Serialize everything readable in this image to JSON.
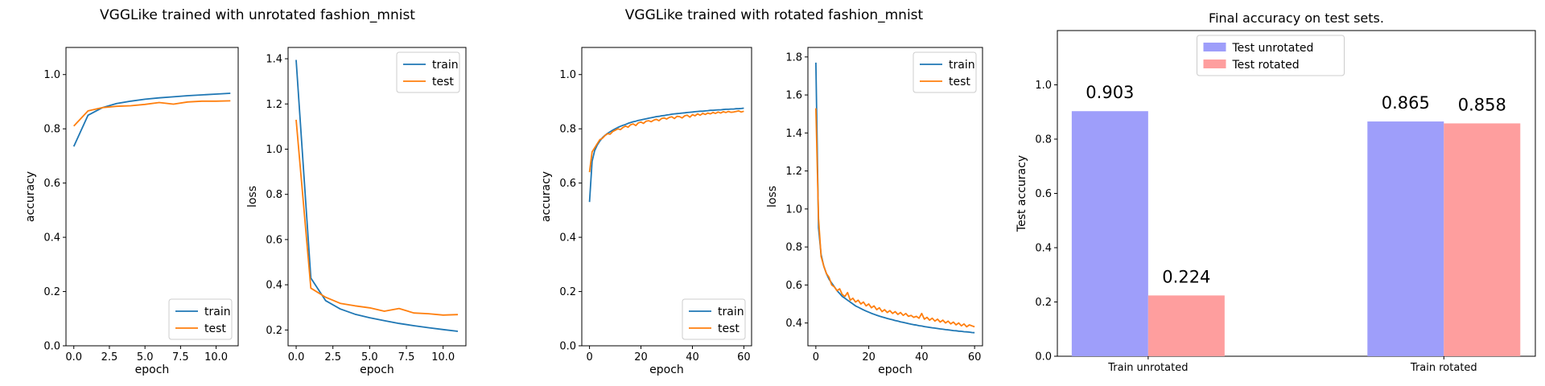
{
  "suptitles": [
    "VGGLike trained with unrotated fashion_mnist",
    "VGGLike trained with rotated fashion_mnist"
  ],
  "chart_data": [
    {
      "id": "unrot_acc",
      "type": "line",
      "title": "",
      "xlabel": "epoch",
      "ylabel": "accuracy",
      "xlim": [
        -0.55,
        11.55
      ],
      "ylim": [
        0,
        1.1
      ],
      "xticks": [
        0,
        2.5,
        5,
        7.5,
        10
      ],
      "xticklabels": [
        "0.0",
        "2.5",
        "5.0",
        "7.5",
        "10.0"
      ],
      "yticks": [
        0,
        0.2,
        0.4,
        0.6,
        0.8,
        1.0
      ],
      "yticklabels": [
        "0.0",
        "0.2",
        "0.4",
        "0.6",
        "0.8",
        "1.0"
      ],
      "legend": "lower-right",
      "grid": false,
      "x": [
        0,
        1,
        2,
        3,
        4,
        5,
        6,
        7,
        8,
        9,
        10,
        11
      ],
      "series": [
        {
          "name": "train",
          "color": "#1f77b4",
          "values": [
            0.735,
            0.85,
            0.878,
            0.893,
            0.902,
            0.909,
            0.914,
            0.918,
            0.922,
            0.925,
            0.928,
            0.931
          ]
        },
        {
          "name": "test",
          "color": "#ff7f0e",
          "values": [
            0.81,
            0.866,
            0.878,
            0.883,
            0.885,
            0.89,
            0.897,
            0.891,
            0.899,
            0.902,
            0.902,
            0.903
          ]
        }
      ]
    },
    {
      "id": "unrot_loss",
      "type": "line",
      "title": "",
      "xlabel": "epoch",
      "ylabel": "loss",
      "xlim": [
        -0.55,
        11.55
      ],
      "ylim": [
        0.13,
        1.45
      ],
      "xticks": [
        0,
        2.5,
        5,
        7.5,
        10
      ],
      "xticklabels": [
        "0.0",
        "2.5",
        "5.0",
        "7.5",
        "10.0"
      ],
      "yticks": [
        0.2,
        0.4,
        0.6,
        0.8,
        1.0,
        1.2,
        1.4
      ],
      "yticklabels": [
        "0.2",
        "0.4",
        "0.6",
        "0.8",
        "1.0",
        "1.2",
        "1.4"
      ],
      "legend": "upper-right",
      "grid": false,
      "x": [
        0,
        1,
        2,
        3,
        4,
        5,
        6,
        7,
        8,
        9,
        10,
        11
      ],
      "series": [
        {
          "name": "train",
          "color": "#1f77b4",
          "values": [
            1.395,
            0.43,
            0.33,
            0.293,
            0.27,
            0.254,
            0.241,
            0.229,
            0.219,
            0.21,
            0.202,
            0.194
          ]
        },
        {
          "name": "test",
          "color": "#ff7f0e",
          "values": [
            1.13,
            0.385,
            0.345,
            0.318,
            0.307,
            0.298,
            0.283,
            0.295,
            0.275,
            0.272,
            0.266,
            0.268
          ]
        }
      ]
    },
    {
      "id": "rot_acc",
      "type": "line",
      "title": "",
      "xlabel": "epoch",
      "ylabel": "accuracy",
      "xlim": [
        -3,
        63
      ],
      "ylim": [
        0,
        1.1
      ],
      "xticks": [
        0,
        20,
        40,
        60
      ],
      "xticklabels": [
        "0",
        "20",
        "40",
        "60"
      ],
      "yticks": [
        0,
        0.2,
        0.4,
        0.6,
        0.8,
        1.0
      ],
      "yticklabels": [
        "0.0",
        "0.2",
        "0.4",
        "0.6",
        "0.8",
        "1.0"
      ],
      "legend": "lower-right",
      "grid": false,
      "x_range": [
        0,
        60
      ],
      "series": [
        {
          "name": "train",
          "color": "#1f77b4",
          "values": [
            0.53,
            0.68,
            0.72,
            0.74,
            0.755,
            0.767,
            0.776,
            0.783,
            0.789,
            0.795,
            0.8,
            0.805,
            0.809,
            0.813,
            0.816,
            0.82,
            0.823,
            0.826,
            0.828,
            0.831,
            0.833,
            0.835,
            0.837,
            0.839,
            0.841,
            0.843,
            0.845,
            0.846,
            0.848,
            0.849,
            0.851,
            0.852,
            0.854,
            0.855,
            0.856,
            0.857,
            0.858,
            0.859,
            0.86,
            0.861,
            0.862,
            0.863,
            0.864,
            0.865,
            0.865,
            0.866,
            0.867,
            0.868,
            0.868,
            0.869,
            0.87,
            0.87,
            0.871,
            0.872,
            0.872,
            0.873,
            0.873,
            0.874,
            0.874,
            0.875,
            0.876
          ]
        },
        {
          "name": "test",
          "color": "#ff7f0e",
          "values": [
            0.64,
            0.715,
            0.73,
            0.745,
            0.76,
            0.765,
            0.775,
            0.782,
            0.78,
            0.79,
            0.795,
            0.8,
            0.797,
            0.805,
            0.81,
            0.806,
            0.815,
            0.818,
            0.812,
            0.822,
            0.825,
            0.82,
            0.828,
            0.83,
            0.826,
            0.832,
            0.835,
            0.83,
            0.838,
            0.84,
            0.836,
            0.842,
            0.844,
            0.838,
            0.846,
            0.845,
            0.84,
            0.848,
            0.85,
            0.843,
            0.852,
            0.848,
            0.855,
            0.85,
            0.857,
            0.853,
            0.858,
            0.855,
            0.86,
            0.857,
            0.862,
            0.858,
            0.863,
            0.86,
            0.864,
            0.861,
            0.862,
            0.864,
            0.866,
            0.862,
            0.865
          ]
        }
      ]
    },
    {
      "id": "rot_loss",
      "type": "line",
      "title": "",
      "xlabel": "epoch",
      "ylabel": "loss",
      "xlim": [
        -3,
        63
      ],
      "ylim": [
        0.28,
        1.85
      ],
      "xticks": [
        0,
        20,
        40,
        60
      ],
      "xticklabels": [
        "0",
        "20",
        "40",
        "60"
      ],
      "yticks": [
        0.4,
        0.6,
        0.8,
        1.0,
        1.2,
        1.4,
        1.6,
        1.8
      ],
      "yticklabels": [
        "0.4",
        "0.6",
        "0.8",
        "1.0",
        "1.2",
        "1.4",
        "1.6",
        "1.8"
      ],
      "legend": "upper-right",
      "grid": false,
      "x_range": [
        0,
        60
      ],
      "series": [
        {
          "name": "train",
          "color": "#1f77b4",
          "values": [
            1.77,
            0.9,
            0.76,
            0.7,
            0.66,
            0.63,
            0.61,
            0.59,
            0.57,
            0.555,
            0.54,
            0.53,
            0.52,
            0.51,
            0.5,
            0.49,
            0.483,
            0.476,
            0.469,
            0.463,
            0.457,
            0.451,
            0.446,
            0.441,
            0.436,
            0.432,
            0.428,
            0.424,
            0.42,
            0.417,
            0.413,
            0.41,
            0.406,
            0.403,
            0.4,
            0.397,
            0.394,
            0.391,
            0.389,
            0.386,
            0.384,
            0.381,
            0.379,
            0.377,
            0.375,
            0.373,
            0.371,
            0.369,
            0.367,
            0.365,
            0.364,
            0.362,
            0.36,
            0.359,
            0.357,
            0.356,
            0.354,
            0.353,
            0.352,
            0.35,
            0.349
          ]
        },
        {
          "name": "test",
          "color": "#ff7f0e",
          "values": [
            1.53,
            0.95,
            0.75,
            0.7,
            0.66,
            0.64,
            0.6,
            0.59,
            0.57,
            0.58,
            0.55,
            0.54,
            0.56,
            0.52,
            0.53,
            0.51,
            0.52,
            0.5,
            0.51,
            0.49,
            0.5,
            0.48,
            0.49,
            0.47,
            0.48,
            0.46,
            0.47,
            0.455,
            0.465,
            0.45,
            0.46,
            0.445,
            0.455,
            0.44,
            0.45,
            0.435,
            0.44,
            0.43,
            0.435,
            0.425,
            0.45,
            0.42,
            0.43,
            0.415,
            0.425,
            0.41,
            0.42,
            0.405,
            0.415,
            0.4,
            0.41,
            0.395,
            0.405,
            0.39,
            0.4,
            0.385,
            0.395,
            0.38,
            0.39,
            0.385,
            0.38
          ]
        }
      ]
    },
    {
      "id": "final_acc",
      "type": "bar",
      "title": "Final accuracy on test sets.",
      "xlabel": "",
      "ylabel": "Test accuracy",
      "ylim": [
        0,
        1.2
      ],
      "yticks": [
        0,
        0.2,
        0.4,
        0.6,
        0.8,
        1.0
      ],
      "yticklabels": [
        "0.0",
        "0.2",
        "0.4",
        "0.6",
        "0.8",
        "1.0"
      ],
      "legend": "upper-center",
      "grid": false,
      "categories": [
        "Train unrotated",
        "Train rotated"
      ],
      "series": [
        {
          "name": "Test unrotated",
          "color": "#9e9efa",
          "values": [
            0.903,
            0.865
          ],
          "labels": [
            "0.903",
            "0.865"
          ]
        },
        {
          "name": "Test rotated",
          "color": "#fe9e9e",
          "values": [
            0.224,
            0.858
          ],
          "labels": [
            "0.224",
            "0.858"
          ]
        }
      ]
    }
  ]
}
